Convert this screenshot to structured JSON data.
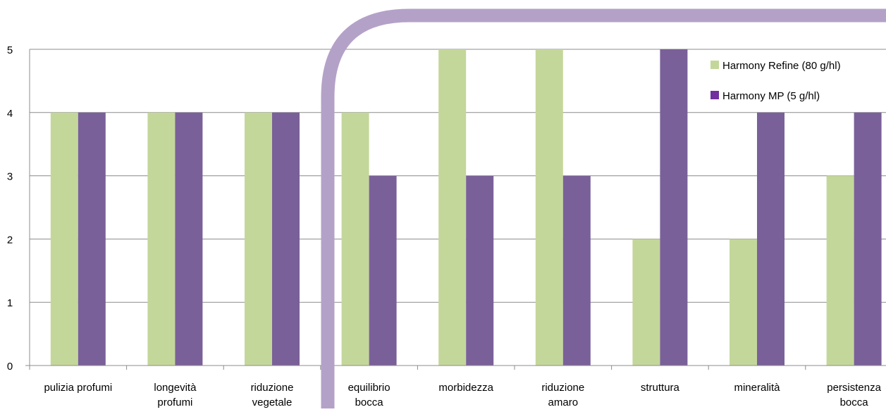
{
  "chart_data": {
    "type": "bar",
    "title": "",
    "xlabel": "",
    "ylabel": "",
    "ylim": [
      0,
      5
    ],
    "yticks": [
      0,
      1,
      2,
      3,
      4,
      5
    ],
    "grid": true,
    "legend_position": "top-right",
    "categories": [
      [
        "pulizia profumi"
      ],
      [
        "longevità",
        "profumi"
      ],
      [
        "riduzione",
        "vegetale"
      ],
      [
        "equilibrio",
        "bocca"
      ],
      [
        "morbidezza"
      ],
      [
        "riduzione",
        "amaro"
      ],
      [
        "struttura"
      ],
      [
        "mineralità"
      ],
      [
        "persistenza",
        "bocca"
      ]
    ],
    "series": [
      {
        "name": "Harmony Refine (80 g/hl)",
        "color": "#c4d79b",
        "legend_color": "#c4d79b",
        "values": [
          4,
          4,
          4,
          4,
          5,
          5,
          2,
          2,
          3
        ]
      },
      {
        "name": "Harmony MP (5 g/hl)",
        "color": "#7a6099",
        "legend_color": "#7030a0",
        "values": [
          4,
          4,
          4,
          3,
          3,
          3,
          5,
          4,
          4
        ]
      }
    ],
    "callout_color": "#b4a1c8"
  }
}
